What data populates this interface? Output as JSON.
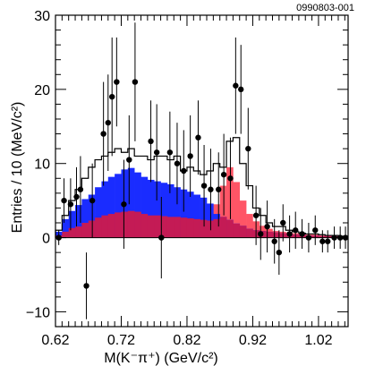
{
  "figure_id": "0990803-001",
  "chart_data": {
    "type": "histogram",
    "xlabel": "M(K⁻π⁺) (GeV/c²)",
    "ylabel": "Entries / 10 (MeV/c²)",
    "xlim": [
      0.62,
      1.065
    ],
    "ylim": [
      -12,
      30
    ],
    "x_ticks": [
      0.62,
      0.72,
      0.82,
      0.92,
      1.02
    ],
    "x_tick_labels": [
      "0.62",
      "0.72",
      "0.82",
      "0.92",
      "1.02"
    ],
    "y_ticks": [
      -10,
      0,
      10,
      20,
      30
    ],
    "y_tick_labels": [
      "−10",
      "0",
      "10",
      "20",
      "30"
    ],
    "bin_edges": [
      0.62,
      0.63,
      0.64,
      0.65,
      0.66,
      0.67,
      0.68,
      0.69,
      0.7,
      0.71,
      0.72,
      0.73,
      0.74,
      0.75,
      0.76,
      0.77,
      0.78,
      0.79,
      0.8,
      0.81,
      0.82,
      0.83,
      0.84,
      0.85,
      0.86,
      0.87,
      0.88,
      0.89,
      0.9,
      0.91,
      0.92,
      0.93,
      0.94,
      0.95,
      0.96,
      0.97,
      0.98,
      0.99,
      1.0,
      1.01,
      1.02,
      1.03,
      1.04,
      1.05,
      1.06
    ],
    "colors": {
      "blue_component": "#1a2cff",
      "red_component": "#ff5566",
      "dark_red_component": "#c41b55",
      "total_outline": "#000000",
      "data_points": "#000000"
    },
    "series": [
      {
        "values": [
          0.3,
          0.8,
          1.3,
          1.5,
          2.0,
          2.3,
          2.7,
          3.0,
          3.2,
          3.4,
          3.5,
          3.6,
          3.5,
          3.2,
          3.0,
          3.0,
          2.9,
          2.8,
          2.8,
          2.7,
          2.6,
          2.5,
          2.4,
          2.3,
          2.5,
          2.8,
          2.4,
          1.9,
          1.6,
          1.2,
          1.0,
          0.9,
          0.8,
          0.7,
          0.6,
          0.5,
          0.4,
          0.4,
          0.3,
          0.3,
          0.2,
          0.2,
          0.2,
          0.1
        ]
      },
      {
        "values": [
          0.3,
          0.8,
          1.3,
          1.5,
          2.0,
          2.3,
          2.7,
          3.0,
          3.2,
          3.4,
          3.5,
          3.6,
          3.5,
          3.2,
          3.0,
          3.0,
          2.9,
          2.8,
          2.8,
          2.7,
          2.6,
          2.5,
          2.4,
          3.2,
          4.5,
          7.0,
          9.5,
          7.5,
          5.0,
          3.2,
          2.2,
          1.6,
          1.2,
          0.9,
          0.8,
          0.7,
          0.6,
          0.5,
          0.4,
          0.4,
          0.3,
          0.3,
          0.2,
          0.2
        ]
      },
      {
        "values": [
          0.8,
          2.5,
          3.6,
          4.4,
          5.2,
          5.8,
          6.8,
          7.6,
          8.2,
          8.6,
          9.2,
          9.4,
          8.8,
          8.2,
          7.8,
          7.6,
          7.4,
          7.2,
          6.8,
          6.5,
          6.2,
          5.8,
          5.4,
          4.6,
          3.2,
          2.8,
          2.4,
          1.9,
          1.6,
          1.2,
          1.0,
          0.9,
          0.8,
          0.7,
          0.6,
          0.5,
          0.4,
          0.4,
          0.3,
          0.3,
          0.2,
          0.2,
          0.2,
          0.1
        ]
      },
      {
        "values": [
          1.0,
          3.0,
          5.0,
          6.5,
          8.0,
          9.5,
          10.5,
          11.0,
          11.5,
          12.0,
          11.5,
          12.0,
          11.0,
          11.0,
          10.5,
          11.0,
          11.0,
          10.5,
          11.0,
          9.0,
          9.5,
          9.0,
          8.5,
          9.0,
          10.0,
          9.5,
          13.0,
          13.5,
          10.0,
          7.0,
          4.0,
          3.0,
          2.0,
          1.5,
          1.5,
          1.0,
          0.8,
          0.6,
          0.5,
          0.5,
          0.4,
          0.3,
          0.3,
          0.2
        ]
      }
    ],
    "points": [
      {
        "x": 0.625,
        "y": 0.0,
        "err": 1.0
      },
      {
        "x": 0.633,
        "y": 5.0,
        "err": 3.0
      },
      {
        "x": 0.643,
        "y": 4.5,
        "err": 3.5
      },
      {
        "x": 0.652,
        "y": 5.5,
        "err": 4.0
      },
      {
        "x": 0.658,
        "y": 6.5,
        "err": 4.5
      },
      {
        "x": 0.667,
        "y": -6.5,
        "err": 4.5
      },
      {
        "x": 0.676,
        "y": 5.0,
        "err": 5.0
      },
      {
        "x": 0.693,
        "y": 14.0,
        "err": 7.0
      },
      {
        "x": 0.7,
        "y": 15.5,
        "err": 6.5
      },
      {
        "x": 0.706,
        "y": 19.0,
        "err": 8.0
      },
      {
        "x": 0.713,
        "y": 21.0,
        "err": 6.0
      },
      {
        "x": 0.724,
        "y": 4.5,
        "err": 6.0
      },
      {
        "x": 0.732,
        "y": 10.5,
        "err": 6.0
      },
      {
        "x": 0.741,
        "y": 21.0,
        "err": 8.0
      },
      {
        "x": 0.765,
        "y": 13.0,
        "err": 5.5
      },
      {
        "x": 0.774,
        "y": 11.5,
        "err": 6.5
      },
      {
        "x": 0.781,
        "y": 0.0,
        "err": 5.5
      },
      {
        "x": 0.794,
        "y": 11.5,
        "err": 5.5
      },
      {
        "x": 0.805,
        "y": 10.0,
        "err": 5.5
      },
      {
        "x": 0.815,
        "y": 9.0,
        "err": 5.5
      },
      {
        "x": 0.825,
        "y": 11.0,
        "err": 5.5
      },
      {
        "x": 0.837,
        "y": 13.5,
        "err": 5.0
      },
      {
        "x": 0.846,
        "y": 7.0,
        "err": 5.5
      },
      {
        "x": 0.856,
        "y": 6.5,
        "err": 5.5
      },
      {
        "x": 0.868,
        "y": 6.5,
        "err": 5.0
      },
      {
        "x": 0.876,
        "y": 8.5,
        "err": 5.5
      },
      {
        "x": 0.886,
        "y": 8.0,
        "err": 5.5
      },
      {
        "x": 0.894,
        "y": 20.5,
        "err": 6.5
      },
      {
        "x": 0.902,
        "y": 20.0,
        "err": 6.0
      },
      {
        "x": 0.913,
        "y": 12.0,
        "err": 5.5
      },
      {
        "x": 0.925,
        "y": 3.0,
        "err": 4.0
      },
      {
        "x": 0.932,
        "y": 0.5,
        "err": 3.5
      },
      {
        "x": 0.942,
        "y": 1.5,
        "err": 3.5
      },
      {
        "x": 0.953,
        "y": -0.5,
        "err": 3.0
      },
      {
        "x": 0.96,
        "y": -2.0,
        "err": 3.0
      },
      {
        "x": 0.966,
        "y": 2.0,
        "err": 2.5
      },
      {
        "x": 0.976,
        "y": 0.5,
        "err": 2.5
      },
      {
        "x": 0.985,
        "y": 1.0,
        "err": 2.5
      },
      {
        "x": 0.995,
        "y": 0.5,
        "err": 2.0
      },
      {
        "x": 1.005,
        "y": 0.0,
        "err": 2.0
      },
      {
        "x": 1.015,
        "y": 1.0,
        "err": 2.0
      },
      {
        "x": 1.026,
        "y": -0.5,
        "err": 1.5
      },
      {
        "x": 1.034,
        "y": -0.5,
        "err": 1.5
      },
      {
        "x": 1.044,
        "y": 0.0,
        "err": 1.5
      },
      {
        "x": 1.053,
        "y": 0.0,
        "err": 1.5
      },
      {
        "x": 1.061,
        "y": 0.0,
        "err": 1.5
      }
    ]
  }
}
